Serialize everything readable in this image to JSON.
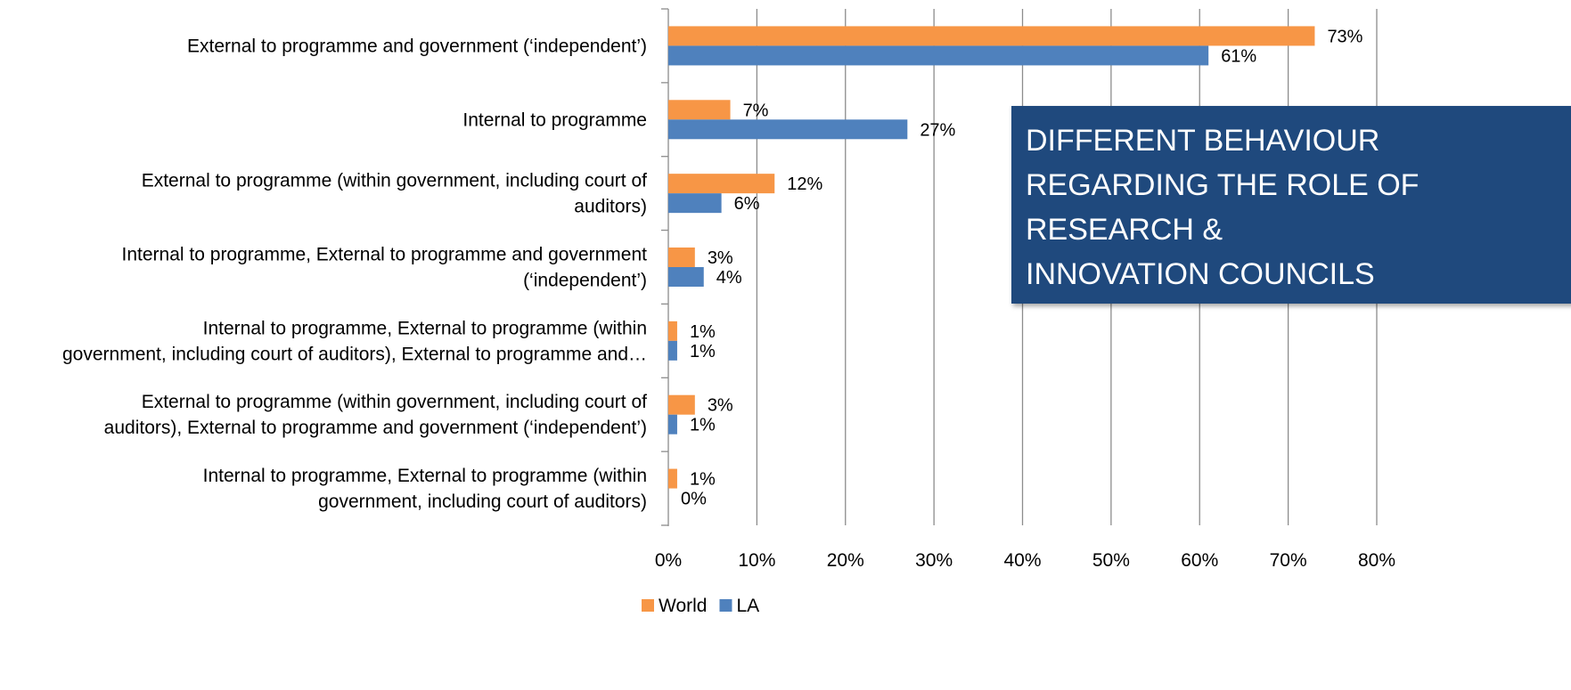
{
  "chart_data": {
    "type": "bar",
    "orientation": "horizontal",
    "categories": [
      [
        "External to programme and government (‘independent’)"
      ],
      [
        "Internal to programme"
      ],
      [
        "External to programme (within government, including court of",
        "auditors)"
      ],
      [
        "Internal to programme, External to programme and government",
        "(‘independent’)"
      ],
      [
        "Internal to programme, External to programme (within",
        "government, including court of auditors), External to programme and…"
      ],
      [
        "External to programme (within government, including court of",
        "auditors), External to programme and government (‘independent’)"
      ],
      [
        "Internal to programme, External to programme (within",
        "government, including court of auditors)"
      ]
    ],
    "series": [
      {
        "name": "World",
        "color": "#f79646",
        "values": [
          73,
          7,
          12,
          3,
          1,
          3,
          1
        ],
        "labels": [
          "73%",
          "7%",
          "12%",
          "3%",
          "1%",
          "3%",
          "1%"
        ]
      },
      {
        "name": "LA",
        "color": "#4f81bd",
        "values": [
          61,
          27,
          6,
          4,
          1,
          1,
          0
        ],
        "labels": [
          "61%",
          "27%",
          "6%",
          "4%",
          "1%",
          "1%",
          "0%"
        ]
      }
    ],
    "xlim": [
      0,
      80
    ],
    "xticks": [
      0,
      10,
      20,
      30,
      40,
      50,
      60,
      70,
      80
    ],
    "xtick_labels": [
      "0%",
      "10%",
      "20%",
      "30%",
      "40%",
      "50%",
      "60%",
      "70%",
      "80%"
    ],
    "grid": true,
    "legend_position": "bottom"
  },
  "callout": {
    "lines": [
      "DIFFERENT BEHAVIOUR",
      "REGARDING THE ROLE OF",
      "RESEARCH &",
      "INNOVATION COUNCILS"
    ]
  }
}
